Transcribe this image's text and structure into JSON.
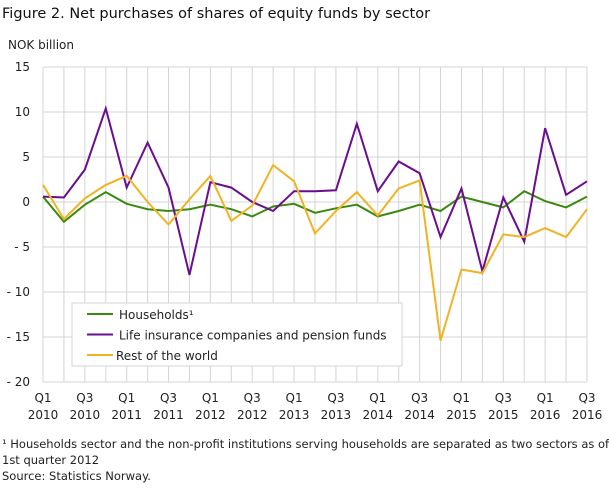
{
  "title": "Figure 2. Net purchases of shares of equity funds by sector",
  "footnotes": [
    "¹ Households sector and the non-profit institutions serving households are separated as two sectors as of",
    "1st quarter 2012",
    "Source: Statistics Norway."
  ],
  "chart_data": {
    "type": "line",
    "title": "Figure 2. Net purchases of shares of equity funds by sector",
    "ylabel": "NOK billion",
    "xlabel": "",
    "ylim": [
      -20,
      15
    ],
    "yticks": [
      15,
      10,
      5,
      0,
      -5,
      -10,
      -15,
      -20
    ],
    "ytick_labels": [
      "15",
      "10",
      "5",
      "0",
      "- 5",
      "- 10",
      "- 15",
      "- 20"
    ],
    "grid": true,
    "legend_position": "bottom-left",
    "x": [
      "Q1 2010",
      "Q2 2010",
      "Q3 2010",
      "Q4 2010",
      "Q1 2011",
      "Q2 2011",
      "Q3 2011",
      "Q4 2011",
      "Q1 2012",
      "Q2 2012",
      "Q3 2012",
      "Q4 2012",
      "Q1 2013",
      "Q2 2013",
      "Q3 2013",
      "Q4 2013",
      "Q1 2014",
      "Q2 2014",
      "Q3 2014",
      "Q4 2014",
      "Q1 2015",
      "Q2 2015",
      "Q3 2015",
      "Q4 2015",
      "Q1 2016",
      "Q2 2016",
      "Q3 2016"
    ],
    "xtick_labels": [
      {
        "q": "Q1",
        "y": "2010"
      },
      {
        "q": "Q3",
        "y": "2010"
      },
      {
        "q": "Q1",
        "y": "2011"
      },
      {
        "q": "Q3",
        "y": "2011"
      },
      {
        "q": "Q1",
        "y": "2012"
      },
      {
        "q": "Q3",
        "y": "2012"
      },
      {
        "q": "Q1",
        "y": "2013"
      },
      {
        "q": "Q3",
        "y": "2013"
      },
      {
        "q": "Q1",
        "y": "2014"
      },
      {
        "q": "Q3",
        "y": "2014"
      },
      {
        "q": "Q1",
        "y": "2015"
      },
      {
        "q": "Q3",
        "y": "2015"
      },
      {
        "q": "Q1",
        "y": "2016"
      },
      {
        "q": "Q3",
        "y": "2016"
      }
    ],
    "series": [
      {
        "name": "Households¹",
        "color": "#3b8a0f",
        "values": [
          0.6,
          -2.2,
          -0.3,
          1.1,
          -0.2,
          -0.8,
          -1.0,
          -0.8,
          -0.3,
          -0.8,
          -1.6,
          -0.5,
          -0.2,
          -1.2,
          -0.7,
          -0.3,
          -1.6,
          -1.0,
          -0.3,
          -1.0,
          0.6,
          0.0,
          -0.6,
          1.2,
          0.1,
          -0.6,
          0.6
        ]
      },
      {
        "name": "Life insurance companies and pension funds",
        "color": "#6a0d8f",
        "values": [
          0.6,
          0.5,
          3.6,
          10.4,
          1.6,
          6.6,
          1.6,
          -8.1,
          2.2,
          1.6,
          0.0,
          -1.0,
          1.2,
          1.2,
          1.3,
          8.7,
          1.2,
          4.5,
          3.2,
          -3.9,
          1.5,
          -7.7,
          0.5,
          -4.4,
          8.2,
          0.8,
          2.3
        ]
      },
      {
        "name": "Rest of the world",
        "color": "#f0b323",
        "values": [
          1.9,
          -1.9,
          0.4,
          1.9,
          2.9,
          0.0,
          -2.5,
          0.3,
          2.9,
          -2.1,
          -0.4,
          4.1,
          2.3,
          -3.5,
          -1.0,
          1.1,
          -1.5,
          1.5,
          2.4,
          -15.4,
          -7.5,
          -7.9,
          -3.6,
          -3.9,
          -2.9,
          -3.9,
          -0.8
        ]
      }
    ]
  }
}
